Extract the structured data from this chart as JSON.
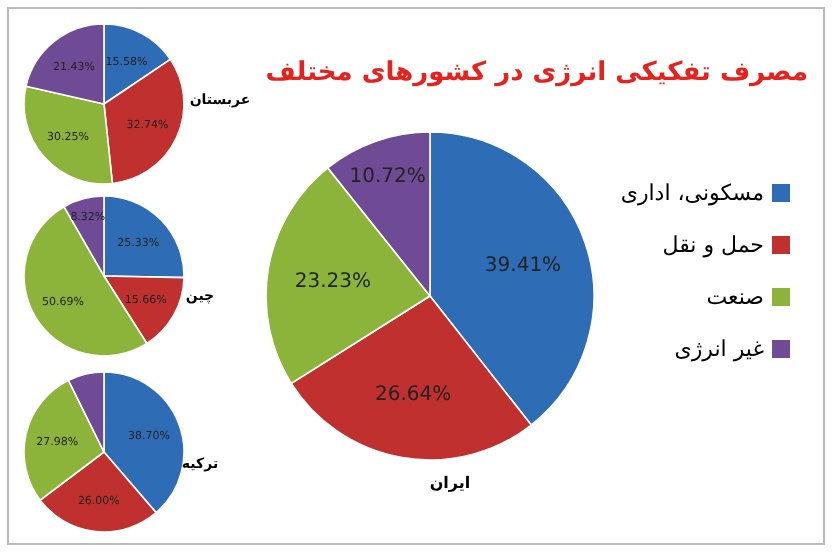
{
  "chart_data": [
    {
      "type": "pie",
      "xlabel": "عربستان",
      "categories": [
        null,
        null,
        null,
        null
      ],
      "values": [
        15.58,
        32.74,
        30.25,
        21.43
      ],
      "value_labels": [
        "15.58%",
        "32.74%",
        "30.25%",
        "21.43%"
      ],
      "colors": [
        "#2e6db5",
        "#c0302f",
        "#8db43a",
        "#6f4b96"
      ]
    },
    {
      "type": "pie",
      "xlabel": "چین",
      "categories": [
        null,
        null,
        null,
        null
      ],
      "values": [
        25.33,
        15.66,
        50.69,
        8.32
      ],
      "value_labels": [
        "25.33%",
        "15.66%",
        "50.69%",
        "8.32%"
      ],
      "colors": [
        "#2e6db5",
        "#c0302f",
        "#8db43a",
        "#6f4b96"
      ]
    },
    {
      "type": "pie",
      "xlabel": "ترکیه",
      "categories": [
        null,
        null,
        null,
        null
      ],
      "values": [
        38.7,
        26.0,
        27.98,
        7.32
      ],
      "value_labels": [
        "38.70%",
        "26.00%",
        "27.98%",
        null
      ],
      "colors": [
        "#2e6db5",
        "#c0302f",
        "#8db43a",
        "#6f4b96"
      ]
    },
    {
      "type": "pie",
      "title": "مصرف تفکیکی انرژی در کشورهای مختلف",
      "xlabel": "ایران",
      "legend": "right",
      "categories": [
        "مسکونی، اداری",
        "حمل و نقل",
        "صنعت",
        "غیر انرژی"
      ],
      "values": [
        39.41,
        26.64,
        23.23,
        10.72
      ],
      "value_labels": [
        "39.41%",
        "26.64%",
        "23.23%",
        "10.72%"
      ],
      "colors": [
        "#2e6db5",
        "#c0302f",
        "#8db43a",
        "#6f4b96"
      ]
    }
  ]
}
